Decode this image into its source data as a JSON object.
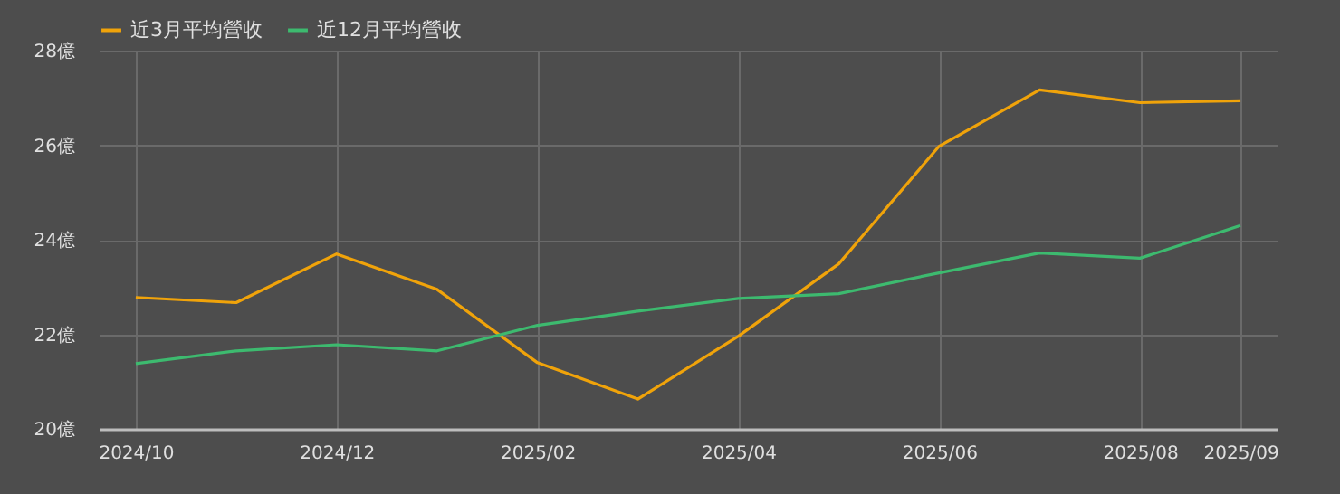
{
  "chart_data": {
    "type": "line",
    "categories": [
      "2024/10",
      null,
      "2024/12",
      null,
      "2025/02",
      null,
      "2025/04",
      null,
      "2025/06",
      null,
      "2025/08",
      "2025/09"
    ],
    "series": [
      {
        "name": "近3月平均營收",
        "color": "#f0a30a",
        "values": [
          22.78,
          22.67,
          23.7,
          22.95,
          21.4,
          20.63,
          21.96,
          23.49,
          25.98,
          27.17,
          26.9,
          26.94
        ]
      },
      {
        "name": "近12月平均營收",
        "color": "#3dba6f",
        "values": [
          21.38,
          21.65,
          21.78,
          21.65,
          22.19,
          22.49,
          22.76,
          22.86,
          23.3,
          23.72,
          23.61,
          24.3
        ]
      }
    ],
    "ylim": [
      20,
      28
    ],
    "yticks": [
      {
        "value": 20,
        "label": "20億"
      },
      {
        "value": 22,
        "label": "22億"
      },
      {
        "value": 24,
        "label": "24億"
      },
      {
        "value": 26,
        "label": "26億"
      },
      {
        "value": 28,
        "label": "28億"
      }
    ],
    "grid": true,
    "legend": "top",
    "marker": "none",
    "line_style": "solid"
  }
}
